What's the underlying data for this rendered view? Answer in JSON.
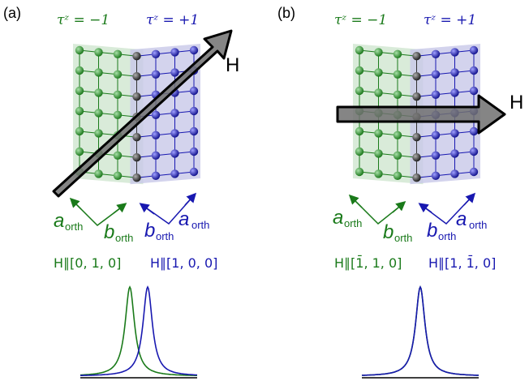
{
  "panels": [
    {
      "label": "(a)",
      "tau_left": "τᶻ = −1",
      "tau_right": "τᶻ = +1",
      "field_label": "H",
      "field_direction": "diagonal",
      "left_axes": {
        "a": "a",
        "b": "b",
        "sub": "orth"
      },
      "right_axes": {
        "a": "a",
        "b": "b",
        "sub": "orth"
      },
      "field_left": "H∥[0, 1, 0]",
      "field_right": "H∥[1, 0, 0]",
      "peak_shift": "split"
    },
    {
      "label": "(b)",
      "tau_left": "τᶻ = −1",
      "tau_right": "τᶻ = +1",
      "field_label": "H",
      "field_direction": "horizontal",
      "left_axes": {
        "a": "a",
        "b": "b",
        "sub": "orth"
      },
      "right_axes": {
        "a": "a",
        "b": "b",
        "sub": "orth"
      },
      "field_left": "H∥[1̄, 1, 0]",
      "field_right": "H∥[1, 1̄, 0]",
      "peak_shift": "overlap"
    }
  ],
  "colors": {
    "green": "#1a7a1a",
    "blue": "#1818b0",
    "green_fill": "#cfe6cf",
    "blue_fill": "#c8c8e8",
    "arrow_fill": "#707070",
    "black_atom": "#333333"
  }
}
